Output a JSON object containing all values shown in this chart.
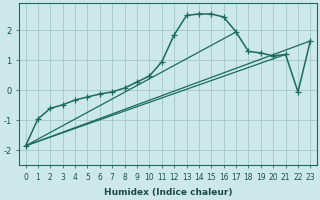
{
  "xlabel": "Humidex (Indice chaleur)",
  "bg_color": "#cce8e8",
  "grid_color": "#aacccc",
  "line_color": "#1a6b5a",
  "xlim": [
    -0.5,
    23.5
  ],
  "ylim": [
    -2.5,
    2.9
  ],
  "xticks": [
    0,
    1,
    2,
    3,
    4,
    5,
    6,
    7,
    8,
    9,
    10,
    11,
    12,
    13,
    14,
    15,
    16,
    17,
    18,
    19,
    20,
    21,
    22,
    23
  ],
  "yticks": [
    -2,
    -1,
    0,
    1,
    2
  ],
  "curve1_x": [
    0,
    1,
    2,
    3,
    4,
    5,
    6,
    7,
    8,
    9,
    10,
    11,
    12,
    13,
    14,
    15,
    16,
    17,
    18,
    19,
    20,
    21,
    22,
    23
  ],
  "curve1_y": [
    -1.85,
    -0.95,
    -0.6,
    -0.48,
    -0.32,
    -0.22,
    -0.12,
    -0.05,
    0.08,
    0.28,
    0.48,
    0.95,
    1.85,
    2.5,
    2.55,
    2.55,
    2.45,
    1.95,
    1.3,
    1.25,
    1.15,
    1.2,
    -0.05,
    1.65
  ],
  "line1_x": [
    0,
    23
  ],
  "line1_y": [
    -1.85,
    1.65
  ],
  "line2_x": [
    0,
    21
  ],
  "line2_y": [
    -1.85,
    1.2
  ],
  "line3_x": [
    0,
    17
  ],
  "line3_y": [
    -1.85,
    1.95
  ],
  "xlabel_fontsize": 6.5,
  "tick_fontsize": 5.5,
  "ytick_fontsize": 6.0
}
